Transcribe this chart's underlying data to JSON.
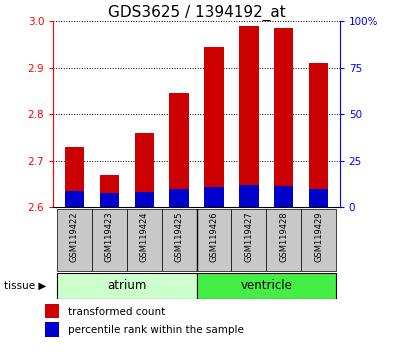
{
  "title": "GDS3625 / 1394192_at",
  "samples": [
    "GSM119422",
    "GSM119423",
    "GSM119424",
    "GSM119425",
    "GSM119426",
    "GSM119427",
    "GSM119428",
    "GSM119429"
  ],
  "red_values": [
    2.73,
    2.67,
    2.76,
    2.845,
    2.945,
    2.99,
    2.985,
    2.91
  ],
  "blue_values": [
    2.635,
    2.63,
    2.632,
    2.638,
    2.643,
    2.648,
    2.646,
    2.64
  ],
  "baseline": 2.6,
  "ylim": [
    2.6,
    3.0
  ],
  "yticks_left": [
    2.6,
    2.7,
    2.8,
    2.9,
    3.0
  ],
  "yticks_right": [
    0,
    25,
    50,
    75,
    100
  ],
  "bar_color_red": "#cc0000",
  "bar_color_blue": "#0000cc",
  "bar_width": 0.55,
  "bg_color": "#ffffff",
  "tick_label_area_bg": "#c8c8c8",
  "atrium_color": "#ccffcc",
  "ventricle_color": "#44ee44",
  "legend_red_label": "transformed count",
  "legend_blue_label": "percentile rank within the sample",
  "title_fontsize": 11,
  "tick_fontsize": 7.5
}
